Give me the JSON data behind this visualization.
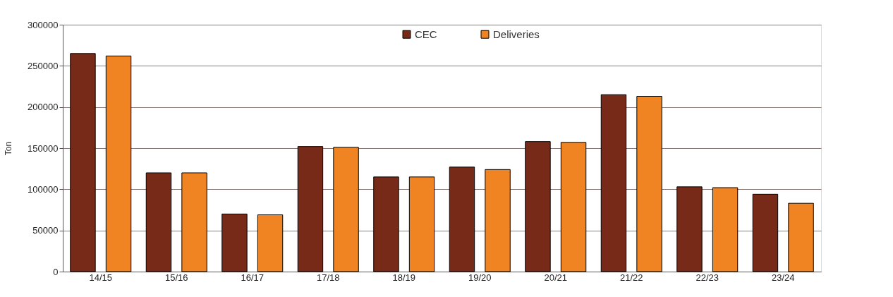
{
  "chart_data": {
    "type": "bar",
    "ylabel": "Ton",
    "categories": [
      "14/15",
      "15/16",
      "16/17",
      "17/18",
      "18/19",
      "19/20",
      "20/21",
      "21/22",
      "22/23",
      "23/24"
    ],
    "series": [
      {
        "name": "CEC",
        "color": "#772a18",
        "values": [
          265000,
          120000,
          70000,
          152000,
          115000,
          127000,
          158000,
          215000,
          103000,
          94000
        ]
      },
      {
        "name": "Deliveries",
        "color": "#f08322",
        "values": [
          262000,
          120000,
          69000,
          151000,
          115000,
          124000,
          157000,
          213000,
          102000,
          83000
        ]
      }
    ],
    "ylim": [
      0,
      300000
    ],
    "yticks": [
      0,
      50000,
      100000,
      150000,
      200000,
      250000,
      300000
    ],
    "grid": "y",
    "legend": "top"
  }
}
